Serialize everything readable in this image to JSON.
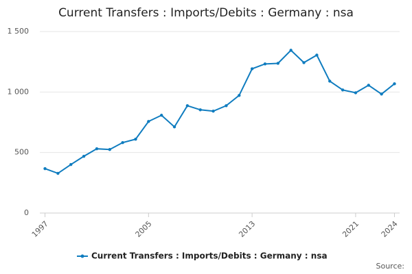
{
  "chart_data": {
    "type": "line",
    "title": "Current Transfers : Imports/Debits : Germany : nsa",
    "x": [
      1997,
      1998,
      1999,
      2000,
      2001,
      2002,
      2003,
      2004,
      2005,
      2006,
      2007,
      2008,
      2009,
      2010,
      2011,
      2012,
      2013,
      2014,
      2015,
      2016,
      2017,
      2018,
      2019,
      2020,
      2021,
      2022,
      2023,
      2024
    ],
    "series": [
      {
        "name": "Current Transfers : Imports/Debits : Germany : nsa",
        "color": "#0f7cbf",
        "values": [
          367,
          328,
          401,
          469,
          531,
          525,
          582,
          610,
          757,
          808,
          712,
          887,
          853,
          842,
          887,
          972,
          1192,
          1232,
          1237,
          1345,
          1243,
          1305,
          1090,
          1017,
          994,
          1056,
          983,
          1068
        ]
      }
    ],
    "xlim": [
      1996.6,
      2024.4
    ],
    "xticks": [
      1997,
      2005,
      2013,
      2021,
      2024
    ],
    "ylim": [
      0,
      1500
    ],
    "yticks": [
      0,
      500,
      {
        "value": 1000,
        "label": "1 000"
      },
      {
        "value": 1500,
        "label": "1 500"
      }
    ],
    "grid": true,
    "source": "Source:"
  }
}
